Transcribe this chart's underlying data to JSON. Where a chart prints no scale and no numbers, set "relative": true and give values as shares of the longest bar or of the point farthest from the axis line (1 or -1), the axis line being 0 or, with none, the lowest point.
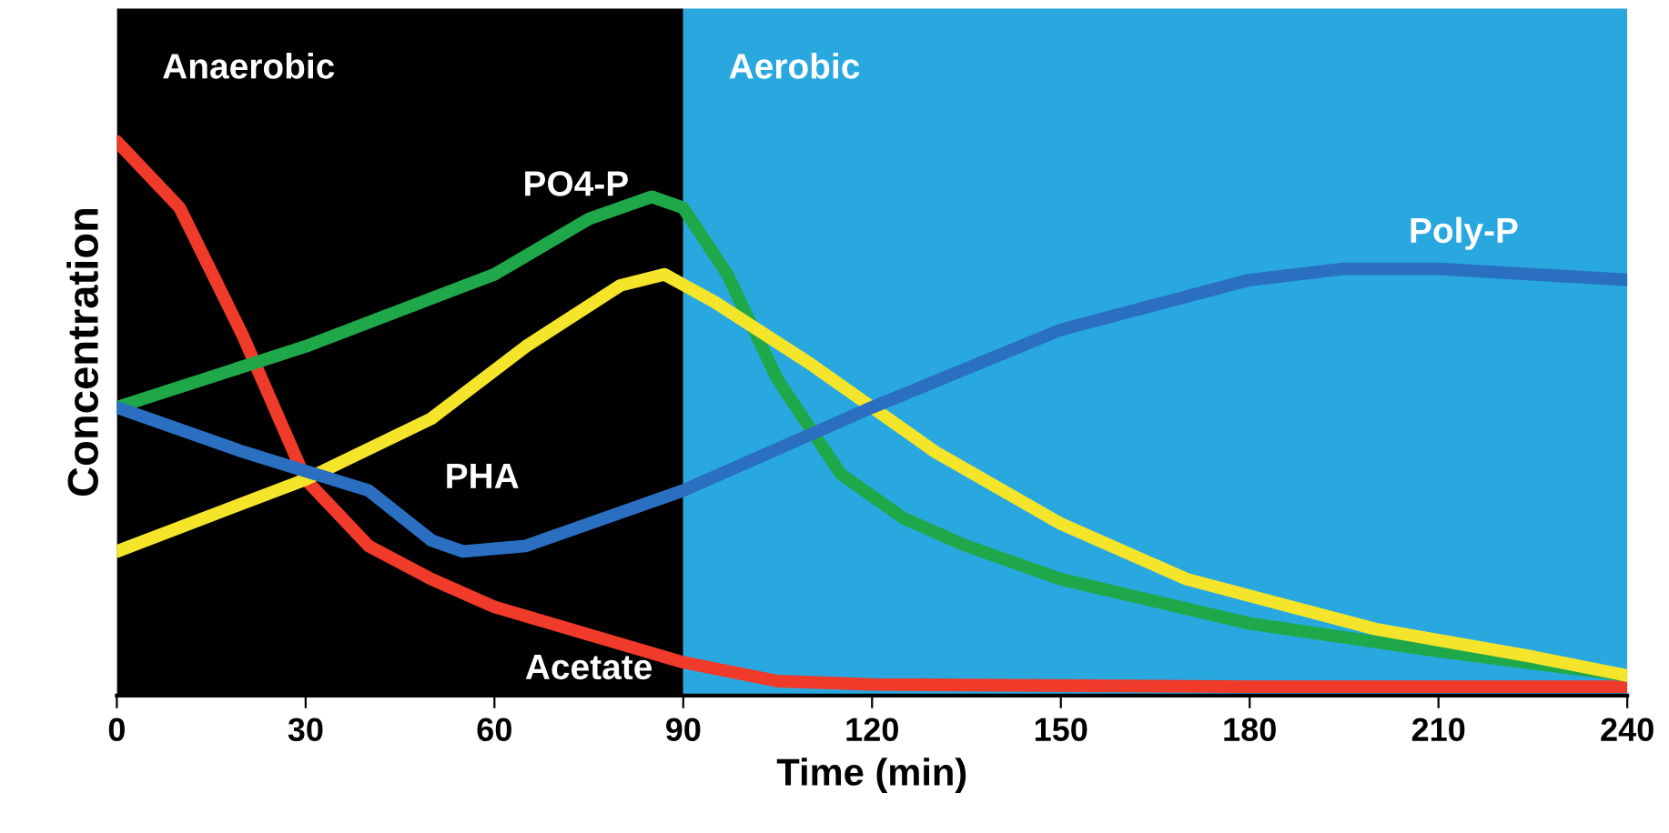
{
  "chart_data": {
    "type": "line",
    "xlabel": "Time (min)",
    "ylabel": "Concentration",
    "relative": true,
    "xlim": [
      0,
      240
    ],
    "xticks": [
      0,
      30,
      60,
      90,
      120,
      150,
      180,
      210,
      240
    ],
    "bands": [
      {
        "axis": "x",
        "from": 0,
        "to": 90,
        "label": "Anaerobic",
        "color": "#000000"
      },
      {
        "axis": "x",
        "from": 90,
        "to": 240,
        "label": "Aerobic",
        "color": "#29a8e0"
      }
    ],
    "series": [
      {
        "name": "Acetate",
        "color": "#f03a2a",
        "x": [
          0,
          10,
          20,
          30,
          40,
          50,
          60,
          75,
          90,
          105,
          120,
          180,
          240
        ],
        "values": [
          1.0,
          0.88,
          0.65,
          0.39,
          0.27,
          0.21,
          0.16,
          0.11,
          0.06,
          0.026,
          0.02,
          0.016,
          0.016
        ]
      },
      {
        "name": "PO4-P",
        "color": "#1fa84a",
        "x": [
          0,
          30,
          60,
          75,
          85,
          90,
          97,
          105,
          115,
          125,
          135,
          150,
          180,
          210,
          240
        ],
        "values": [
          0.52,
          0.63,
          0.76,
          0.86,
          0.9,
          0.88,
          0.76,
          0.57,
          0.4,
          0.32,
          0.27,
          0.21,
          0.13,
          0.08,
          0.036
        ]
      },
      {
        "name": "PHA",
        "color": "#f5e52a",
        "x": [
          0,
          30,
          50,
          65,
          80,
          87,
          95,
          110,
          130,
          150,
          170,
          200,
          225,
          240
        ],
        "values": [
          0.26,
          0.39,
          0.5,
          0.63,
          0.74,
          0.76,
          0.71,
          0.6,
          0.44,
          0.31,
          0.21,
          0.12,
          0.07,
          0.036
        ]
      },
      {
        "name": "Poly-P",
        "color": "#2a6fc0",
        "x": [
          0,
          20,
          40,
          50,
          55,
          65,
          90,
          120,
          150,
          180,
          195,
          210,
          240
        ],
        "values": [
          0.52,
          0.44,
          0.37,
          0.28,
          0.26,
          0.27,
          0.37,
          0.52,
          0.66,
          0.75,
          0.77,
          0.77,
          0.75
        ]
      }
    ],
    "grid": false,
    "legend": false,
    "marker": "none",
    "line_style": "solid"
  }
}
